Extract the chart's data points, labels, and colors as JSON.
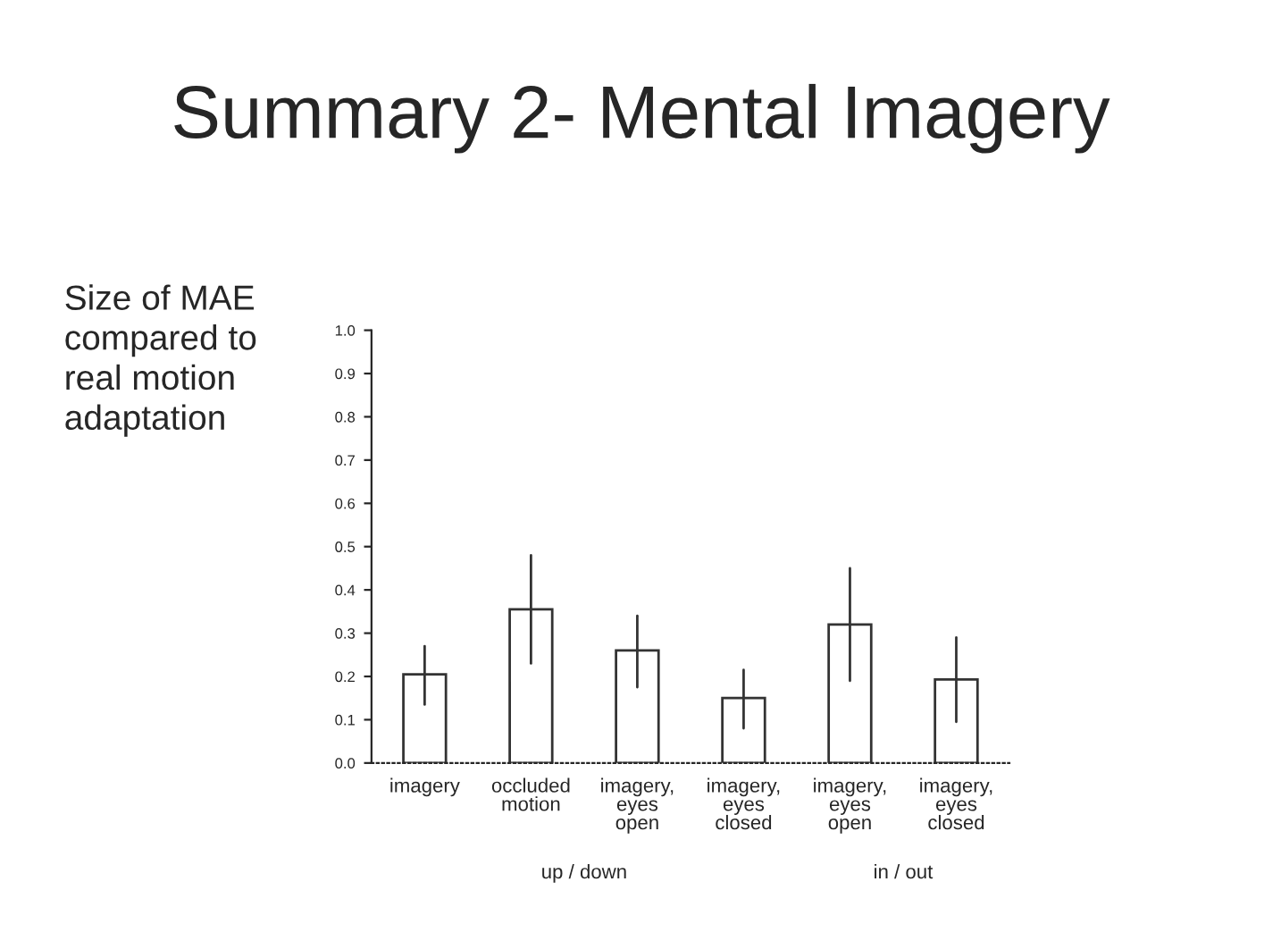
{
  "chart_data": {
    "type": "bar",
    "title": "Summary 2- Mental Imagery",
    "categories": [
      "imagery",
      "occluded\nmotion",
      "imagery,\neyes\nopen",
      "imagery,\neyes\nclosed",
      "imagery,\neyes\nopen",
      "imagery,\neyes\nclosed"
    ],
    "values": [
      0.205,
      0.355,
      0.26,
      0.15,
      0.32,
      0.193
    ],
    "errors": [
      [
        0.135,
        0.27
      ],
      [
        0.23,
        0.48
      ],
      [
        0.175,
        0.34
      ],
      [
        0.08,
        0.215
      ],
      [
        0.19,
        0.45
      ],
      [
        0.095,
        0.29
      ]
    ],
    "color": "#ffffff",
    "ylim": [
      0.0,
      1.0
    ],
    "yticks": [
      {
        "value": 0,
        "label": "0.0"
      },
      0.1,
      0.2,
      0.3,
      0.4,
      0.5,
      0.6,
      0.7,
      0.8,
      0.9,
      {
        "value": 1,
        "label": "1.0"
      }
    ],
    "annotations": [
      "Size of MAE\ncompared to\nreal motion\nadaptation",
      "up / down",
      "in / out"
    ],
    "grid": false
  }
}
